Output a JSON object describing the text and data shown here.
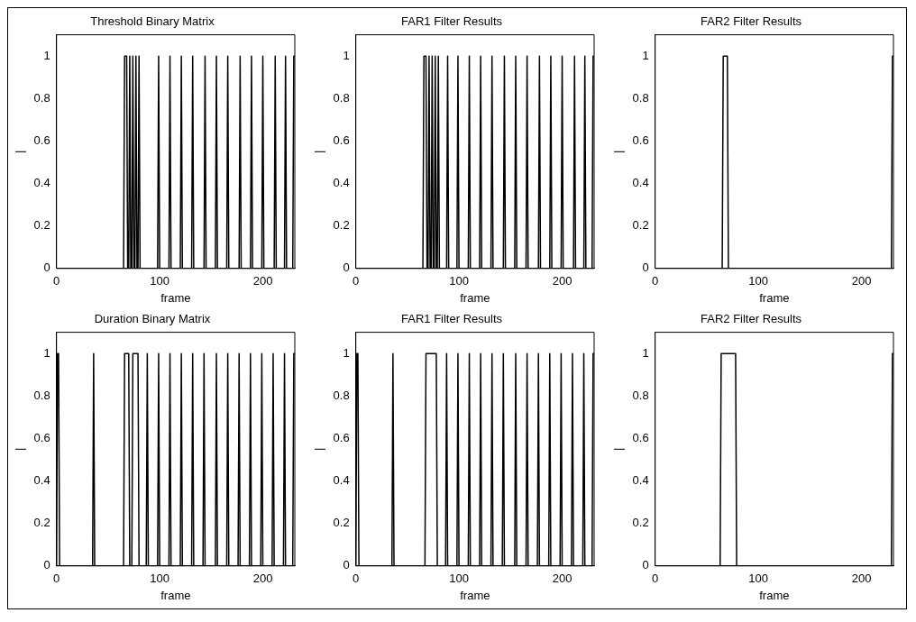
{
  "chart_data": [
    {
      "type": "line",
      "title": "Threshold Binary Matrix",
      "xlabel": "frame",
      "ylabel": "|",
      "color": "#000000",
      "xlim": [
        0,
        231
      ],
      "xticks": [
        0,
        100,
        200
      ],
      "ylim": [
        0,
        1.1
      ],
      "yticks": [
        0,
        0.2,
        0.4,
        0.6,
        0.8,
        1
      ],
      "x": [
        0,
        65,
        66,
        68,
        69,
        70,
        71,
        72,
        73,
        74,
        75,
        76,
        77,
        78,
        79,
        80,
        81,
        98,
        99,
        100,
        109,
        110,
        111,
        120,
        121,
        122,
        131,
        132,
        133,
        143,
        144,
        145,
        154,
        155,
        156,
        165,
        166,
        167,
        177,
        178,
        179,
        188,
        189,
        190,
        199,
        200,
        201,
        211,
        212,
        213,
        221,
        222,
        223,
        229,
        230,
        231
      ],
      "values": [
        0,
        0,
        1,
        1,
        0,
        0,
        1,
        0,
        0,
        1,
        0,
        0,
        1,
        0,
        0,
        1,
        0,
        0,
        1,
        0,
        0,
        1,
        0,
        0,
        1,
        0,
        0,
        1,
        0,
        0,
        1,
        0,
        0,
        1,
        0,
        0,
        1,
        0,
        0,
        1,
        0,
        0,
        1,
        0,
        0,
        1,
        0,
        0,
        1,
        0,
        0,
        1,
        0,
        0,
        1,
        1
      ]
    },
    {
      "type": "line",
      "title": "FAR1 Filter Results",
      "xlabel": "frame",
      "ylabel": "|",
      "color": "#000000",
      "xlim": [
        0,
        231
      ],
      "xticks": [
        0,
        100,
        200
      ],
      "ylim": [
        0,
        1.1
      ],
      "yticks": [
        0,
        0.2,
        0.4,
        0.6,
        0.8,
        1
      ],
      "x": [
        0,
        65,
        66,
        68,
        69,
        70,
        71,
        72,
        73,
        74,
        75,
        76,
        77,
        78,
        79,
        80,
        81,
        88,
        89,
        90,
        98,
        99,
        100,
        109,
        110,
        111,
        120,
        121,
        122,
        131,
        132,
        133,
        143,
        144,
        145,
        154,
        155,
        156,
        165,
        166,
        167,
        177,
        178,
        179,
        188,
        189,
        190,
        199,
        200,
        201,
        211,
        212,
        213,
        221,
        222,
        223,
        229,
        230,
        231
      ],
      "values": [
        0,
        0,
        1,
        1,
        0,
        0,
        1,
        0,
        0,
        1,
        0,
        0,
        1,
        0,
        0,
        1,
        0,
        0,
        1,
        0,
        0,
        1,
        0,
        0,
        1,
        0,
        0,
        1,
        0,
        0,
        1,
        0,
        0,
        1,
        0,
        0,
        1,
        0,
        0,
        1,
        0,
        0,
        1,
        0,
        0,
        1,
        0,
        0,
        1,
        0,
        0,
        1,
        0,
        0,
        1,
        0,
        0,
        1,
        1
      ]
    },
    {
      "type": "line",
      "title": "FAR2 Filter Results",
      "xlabel": "frame",
      "ylabel": "|",
      "color": "#000000",
      "xlim": [
        0,
        231
      ],
      "xticks": [
        0,
        100,
        200
      ],
      "ylim": [
        0,
        1.1
      ],
      "yticks": [
        0,
        0.2,
        0.4,
        0.6,
        0.8,
        1
      ],
      "x": [
        0,
        65,
        66,
        70,
        71,
        229,
        230,
        231
      ],
      "values": [
        0,
        0,
        1,
        1,
        0,
        0,
        1,
        1
      ]
    },
    {
      "type": "line",
      "title": "Duration Binary Matrix",
      "xlabel": "frame",
      "ylabel": "|",
      "color": "#000000",
      "xlim": [
        0,
        231
      ],
      "xticks": [
        0,
        100,
        200
      ],
      "ylim": [
        0,
        1.1
      ],
      "yticks": [
        0,
        0.2,
        0.4,
        0.6,
        0.8,
        1
      ],
      "x": [
        0,
        1,
        2,
        3,
        35,
        36,
        37,
        65,
        66,
        70,
        71,
        73,
        74,
        79,
        80,
        87,
        88,
        89,
        98,
        99,
        100,
        109,
        110,
        111,
        120,
        121,
        122,
        131,
        132,
        133,
        142,
        143,
        144,
        154,
        155,
        156,
        165,
        166,
        167,
        176,
        177,
        178,
        187,
        188,
        189,
        198,
        199,
        200,
        209,
        210,
        211,
        220,
        221,
        222,
        229,
        230,
        231
      ],
      "values": [
        0,
        1,
        1,
        0,
        0,
        1,
        0,
        0,
        1,
        1,
        0,
        0,
        1,
        1,
        0,
        0,
        1,
        0,
        0,
        1,
        0,
        0,
        1,
        0,
        0,
        1,
        0,
        0,
        1,
        0,
        0,
        1,
        0,
        0,
        1,
        0,
        0,
        1,
        0,
        0,
        1,
        0,
        0,
        1,
        0,
        0,
        1,
        0,
        0,
        1,
        0,
        0,
        1,
        0,
        0,
        1,
        1
      ]
    },
    {
      "type": "line",
      "title": "FAR1 Filter Results",
      "xlabel": "frame",
      "ylabel": "|",
      "color": "#000000",
      "xlim": [
        0,
        231
      ],
      "xticks": [
        0,
        100,
        200
      ],
      "ylim": [
        0,
        1.1
      ],
      "yticks": [
        0,
        0.2,
        0.4,
        0.6,
        0.8,
        1
      ],
      "x": [
        0,
        1,
        2,
        3,
        35,
        36,
        37,
        67,
        68,
        78,
        79,
        87,
        88,
        89,
        98,
        99,
        100,
        109,
        110,
        111,
        120,
        121,
        122,
        131,
        132,
        133,
        142,
        143,
        144,
        154,
        155,
        156,
        165,
        166,
        167,
        176,
        177,
        178,
        187,
        188,
        189,
        198,
        199,
        200,
        209,
        210,
        211,
        220,
        221,
        222,
        229,
        230,
        231
      ],
      "values": [
        0,
        1,
        1,
        0,
        0,
        1,
        0,
        0,
        1,
        1,
        0,
        0,
        1,
        0,
        0,
        1,
        0,
        0,
        1,
        0,
        0,
        1,
        0,
        0,
        1,
        0,
        0,
        1,
        0,
        0,
        1,
        0,
        0,
        1,
        0,
        0,
        1,
        0,
        0,
        1,
        0,
        0,
        1,
        0,
        0,
        1,
        0,
        0,
        1,
        0,
        0,
        1,
        1
      ]
    },
    {
      "type": "line",
      "title": "FAR2 Filter Results",
      "xlabel": "frame",
      "ylabel": "|",
      "color": "#000000",
      "xlim": [
        0,
        231
      ],
      "xticks": [
        0,
        100,
        200
      ],
      "ylim": [
        0,
        1.1
      ],
      "yticks": [
        0,
        0.2,
        0.4,
        0.6,
        0.8,
        1
      ],
      "x": [
        0,
        63,
        64,
        78,
        79,
        229,
        230,
        231
      ],
      "values": [
        0,
        0,
        1,
        1,
        0,
        0,
        1,
        1
      ]
    }
  ]
}
